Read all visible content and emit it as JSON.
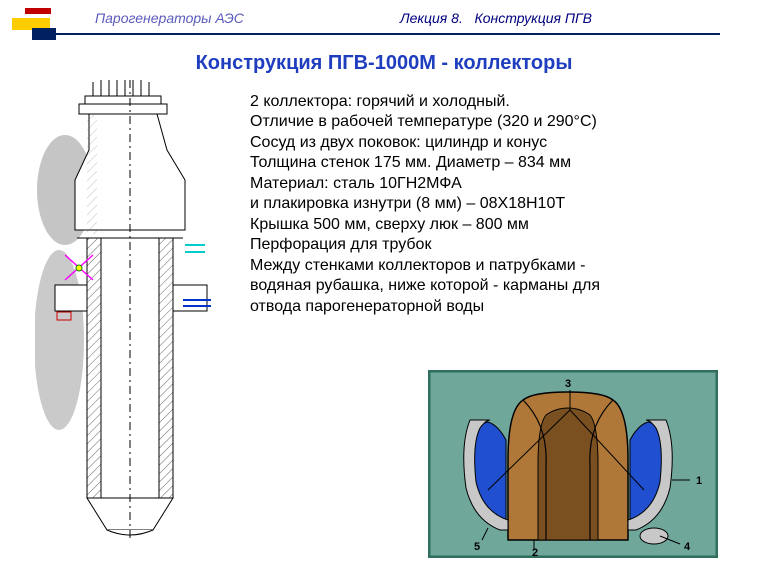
{
  "header": {
    "left": "Парогенераторы АЭС",
    "right_prefix": "Лекция",
    "right_num": "8.",
    "right_title": "Конструкция ПГВ",
    "left_color": "#5b5bbd",
    "right_color": "#000080",
    "deco": {
      "bar_top_color": "#c00000",
      "bar_mid_color": "#ffcc00",
      "line_color": "#002060"
    }
  },
  "title": {
    "text": "Конструкция ПГВ-1000М - коллекторы",
    "color": "#1f3dbf"
  },
  "body": {
    "lines": [
      "2 коллектора: горячий и холодный.",
      "Отличие в рабочей температуре (320 и 290°C)",
      "Сосуд из двух поковок: цилиндр и конус",
      "Толщина стенок 175 мм. Диаметр – 834 мм",
      "Материал: сталь 10ГН2МФА",
      "и плакировка изнутри (8 мм) – 08Х18Н10Т",
      "Крышка 500 мм, сверху люк – 800 мм",
      "Перфорация для трубок",
      "Между стенками коллекторов и патрубками -",
      "водяная рубашка, ниже которой - карманы для",
      "отвода парогенераторной воды"
    ]
  },
  "left_drawing": {
    "outline_color": "#000000",
    "hatch_color": "#888888",
    "shadow_color": "#7a7a7a",
    "accent_colors": {
      "cyan": "#00cccc",
      "magenta": "#ff00ff",
      "yellow": "#ffff00",
      "blue": "#0033cc",
      "green": "#008000",
      "red": "#cc0000"
    }
  },
  "cutaway": {
    "frame_color": "#2f6f5f",
    "background": "#6fa79a",
    "body_color": "#b07838",
    "body_dark": "#7a5020",
    "water_color": "#2050d0",
    "steel_color": "#c8c8c8",
    "line_color": "#000000",
    "label_color": "#000000",
    "labels": {
      "l1": "1",
      "l2": "2",
      "l3": "3",
      "l4": "4",
      "l5": "5"
    }
  }
}
